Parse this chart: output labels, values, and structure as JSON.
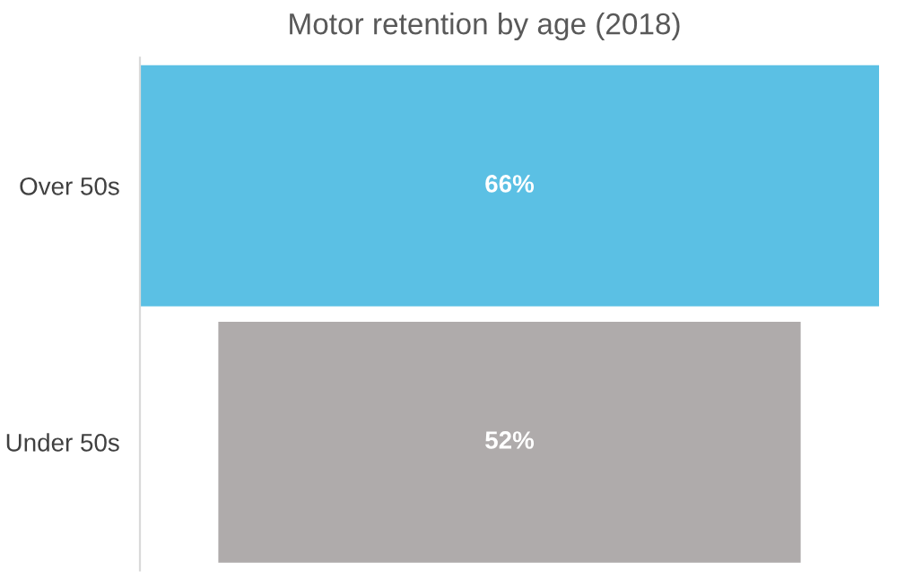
{
  "chart_data": {
    "type": "other",
    "title": "Motor retention by age (2018)",
    "categories": [
      "Over 50s",
      "Under 50s"
    ],
    "values": [
      66,
      52
    ],
    "value_labels": [
      "66%",
      "52%"
    ],
    "colors": [
      "#5bc0e4",
      "#afabab"
    ]
  }
}
